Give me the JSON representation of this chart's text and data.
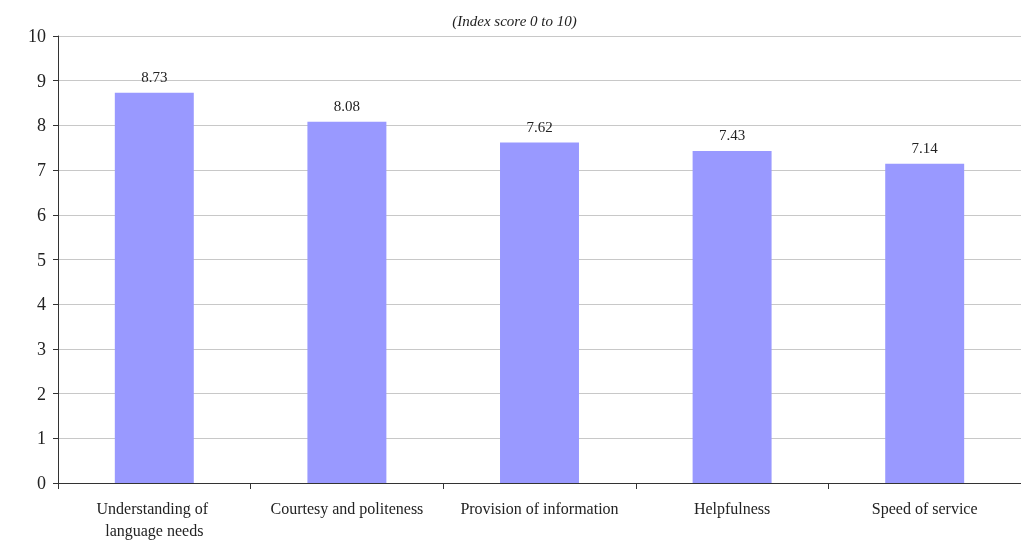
{
  "chart_data": {
    "type": "bar",
    "subtitle": "(Index score 0 to 10)",
    "categories": [
      "Understanding of language needs",
      "Courtesy and politeness",
      "Provision of information",
      "Helpfulness",
      "Speed of service"
    ],
    "values": [
      8.73,
      8.08,
      7.62,
      7.43,
      7.14
    ],
    "color": "#9999ff",
    "ylim": [
      0,
      10
    ],
    "yticks": [
      0,
      1,
      2,
      3,
      4,
      5,
      6,
      7,
      8,
      9,
      10
    ],
    "grid": "y",
    "data_labels": true
  }
}
